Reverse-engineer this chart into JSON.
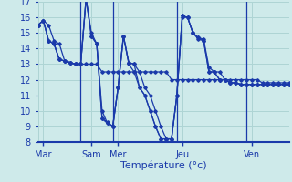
{
  "xlabel": "Température (°c)",
  "background_color": "#ceeaea",
  "grid_color": "#aed4d4",
  "line_color": "#1a3aaa",
  "ylim": [
    8,
    17
  ],
  "yticks": [
    8,
    9,
    10,
    11,
    12,
    13,
    14,
    15,
    16,
    17
  ],
  "xlim": [
    0,
    47
  ],
  "n_points": 48,
  "series": [
    [
      15.5,
      15.8,
      15.5,
      14.5,
      14.3,
      13.2,
      13.1,
      13.0,
      13.0,
      13.0,
      13.0,
      13.0,
      12.5,
      12.5,
      12.5,
      12.5,
      12.5,
      12.5,
      12.5,
      12.5,
      12.5,
      12.5,
      12.5,
      12.5,
      12.5,
      12.0,
      12.0,
      12.0,
      12.0,
      12.0,
      12.0,
      12.0,
      12.0,
      12.0,
      12.0,
      12.0,
      12.0,
      12.0,
      12.0,
      12.0,
      12.0,
      12.0,
      11.8,
      11.8,
      11.8,
      11.8,
      11.8,
      11.8
    ],
    [
      15.5,
      15.8,
      14.5,
      14.3,
      13.3,
      13.2,
      13.1,
      13.0,
      13.0,
      17.2,
      14.8,
      14.3,
      9.5,
      9.2,
      9.0,
      11.5,
      14.8,
      13.1,
      13.0,
      12.5,
      11.5,
      11.0,
      10.0,
      9.0,
      8.2,
      8.2,
      11.0,
      16.1,
      16.0,
      15.0,
      14.7,
      14.6,
      12.8,
      12.5,
      12.5,
      12.0,
      11.8,
      11.8,
      11.7,
      11.7,
      11.7,
      11.7,
      11.7,
      11.7,
      11.7,
      11.7,
      11.7,
      11.7
    ],
    [
      15.5,
      15.8,
      14.5,
      14.3,
      13.3,
      13.2,
      13.1,
      13.0,
      13.0,
      17.2,
      14.8,
      14.3,
      9.5,
      9.3,
      9.0,
      11.5,
      14.8,
      13.0,
      12.5,
      11.5,
      11.0,
      10.0,
      9.0,
      8.2,
      8.2,
      8.2,
      11.0,
      16.1,
      16.0,
      15.0,
      14.6,
      14.5,
      12.5,
      12.5,
      12.0,
      12.0,
      11.8,
      11.8,
      11.7,
      11.7,
      11.7,
      11.7,
      11.7,
      11.7,
      11.7,
      11.7,
      11.7,
      11.7
    ],
    [
      15.5,
      15.8,
      14.5,
      14.3,
      13.3,
      13.2,
      13.1,
      13.0,
      13.0,
      17.2,
      15.0,
      14.3,
      10.0,
      9.2,
      9.0,
      11.5,
      14.8,
      13.1,
      13.0,
      11.5,
      11.0,
      10.0,
      9.0,
      8.2,
      8.2,
      8.2,
      11.0,
      16.0,
      16.0,
      15.0,
      14.7,
      14.5,
      12.5,
      12.5,
      12.0,
      12.0,
      11.8,
      11.8,
      11.7,
      11.7,
      11.7,
      11.7,
      11.7,
      11.7,
      11.7,
      11.7,
      11.7,
      11.7
    ]
  ],
  "day_tick_x": [
    1,
    10,
    15,
    27,
    40
  ],
  "day_labels": [
    "Mar",
    "Sam",
    "Mer",
    "Jeu",
    "Ven"
  ],
  "vline_x": [
    8,
    14,
    26,
    39
  ],
  "bottom_border_color": "#1a3aaa",
  "tick_color": "#1a3aaa",
  "label_color": "#1a3aaa"
}
